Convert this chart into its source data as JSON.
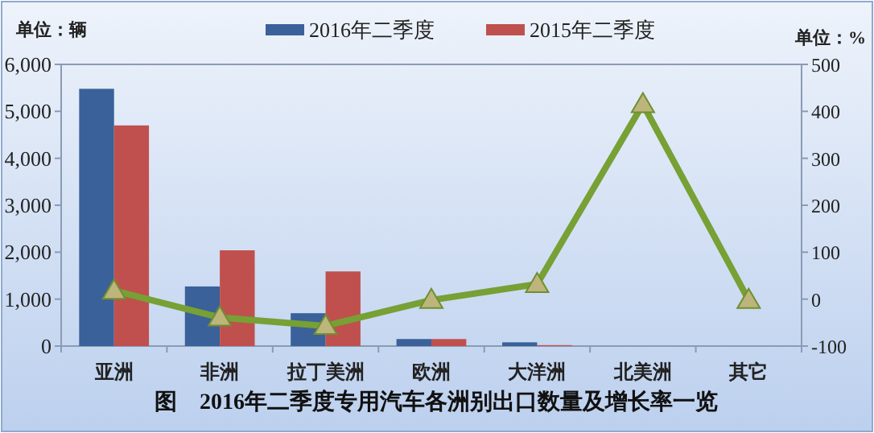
{
  "chart_data": {
    "type": "bar",
    "title": "图　2016年二季度专用汽车各洲别出口数量及增长率一览",
    "ylabel": "单位：辆",
    "y2label": "单位：%",
    "categories": [
      "亚洲",
      "非洲",
      "拉丁美洲",
      "欧洲",
      "大洋洲",
      "北美洲",
      "其它"
    ],
    "series": [
      {
        "name": "2016年二季度",
        "color": "#3a6199",
        "values": [
          5480,
          1270,
          700,
          150,
          80,
          0,
          0
        ]
      },
      {
        "name": "2015年二季度",
        "color": "#c0504d",
        "values": [
          4700,
          2040,
          1590,
          150,
          20,
          0,
          0
        ]
      },
      {
        "type": "line",
        "axis": "y2",
        "color": "#77a035",
        "marker": "triangle",
        "values": [
          18,
          -39,
          -57,
          -2,
          32,
          415,
          -2
        ]
      }
    ],
    "ylim": [
      0,
      6000
    ],
    "yticks": [
      {
        "value": 0,
        "label": "0"
      },
      {
        "value": 1000,
        "label": "1,000"
      },
      {
        "value": 2000,
        "label": "2,000"
      },
      {
        "value": 3000,
        "label": "3,000"
      },
      {
        "value": 4000,
        "label": "4,000"
      },
      {
        "value": 5000,
        "label": "5,000"
      },
      {
        "value": 6000,
        "label": "6,000"
      }
    ],
    "y2lim": [
      -100,
      500
    ],
    "y2ticks": [
      -100,
      0,
      100,
      200,
      300,
      400,
      500
    ],
    "legend": "top"
  }
}
